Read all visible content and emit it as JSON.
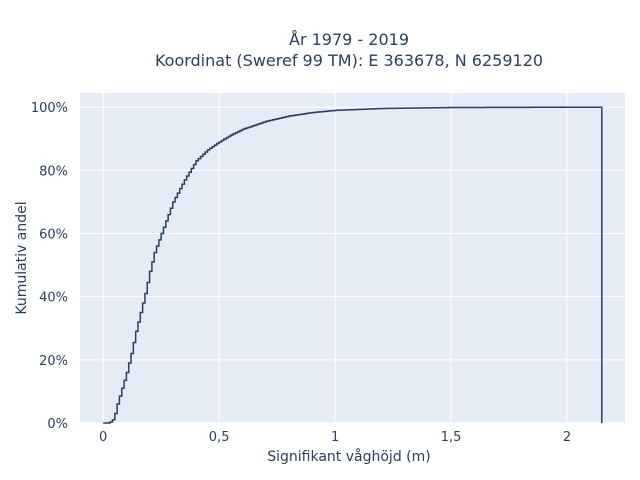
{
  "chart_data": {
    "type": "line",
    "subtype": "cumulative-step",
    "title_line1": "År 1979 - 2019",
    "title_line2": "Koordinat (Sweref 99 TM): E 363678, N 6259120",
    "xlabel": "Signifikant våghöjd (m)",
    "ylabel": "Kumulativ andel",
    "xlim": [
      -0.1,
      2.25
    ],
    "ylim": [
      0,
      1.045
    ],
    "x_ticks": [
      0,
      0.5,
      1,
      1.5,
      2
    ],
    "x_tick_labels": [
      "0",
      "0,5",
      "1",
      "1,5",
      "2"
    ],
    "y_ticks": [
      0,
      0.2,
      0.4,
      0.6,
      0.8,
      1.0
    ],
    "y_tick_labels": [
      "0%",
      "20%",
      "40%",
      "60%",
      "80%",
      "100%"
    ],
    "grid": true,
    "step_width": 0.01,
    "x_max": 2.15,
    "points": [
      [
        0.0,
        0.0
      ],
      [
        0.02,
        0.0
      ],
      [
        0.03,
        0.003
      ],
      [
        0.04,
        0.01
      ],
      [
        0.05,
        0.03
      ],
      [
        0.06,
        0.06
      ],
      [
        0.08,
        0.11
      ],
      [
        0.1,
        0.16
      ],
      [
        0.12,
        0.22
      ],
      [
        0.14,
        0.29
      ],
      [
        0.16,
        0.35
      ],
      [
        0.18,
        0.41
      ],
      [
        0.2,
        0.48
      ],
      [
        0.22,
        0.54
      ],
      [
        0.25,
        0.6
      ],
      [
        0.3,
        0.7
      ],
      [
        0.35,
        0.77
      ],
      [
        0.4,
        0.83
      ],
      [
        0.45,
        0.865
      ],
      [
        0.5,
        0.89
      ],
      [
        0.55,
        0.912
      ],
      [
        0.6,
        0.93
      ],
      [
        0.7,
        0.955
      ],
      [
        0.8,
        0.972
      ],
      [
        0.9,
        0.983
      ],
      [
        1.0,
        0.99
      ],
      [
        1.2,
        0.996
      ],
      [
        1.5,
        0.999
      ],
      [
        2.0,
        1.0
      ],
      [
        2.15,
        1.0
      ]
    ],
    "line_color": "#2a3f5f",
    "plot_bg": "#e5ecf6",
    "grid_color": "#ffffff"
  }
}
